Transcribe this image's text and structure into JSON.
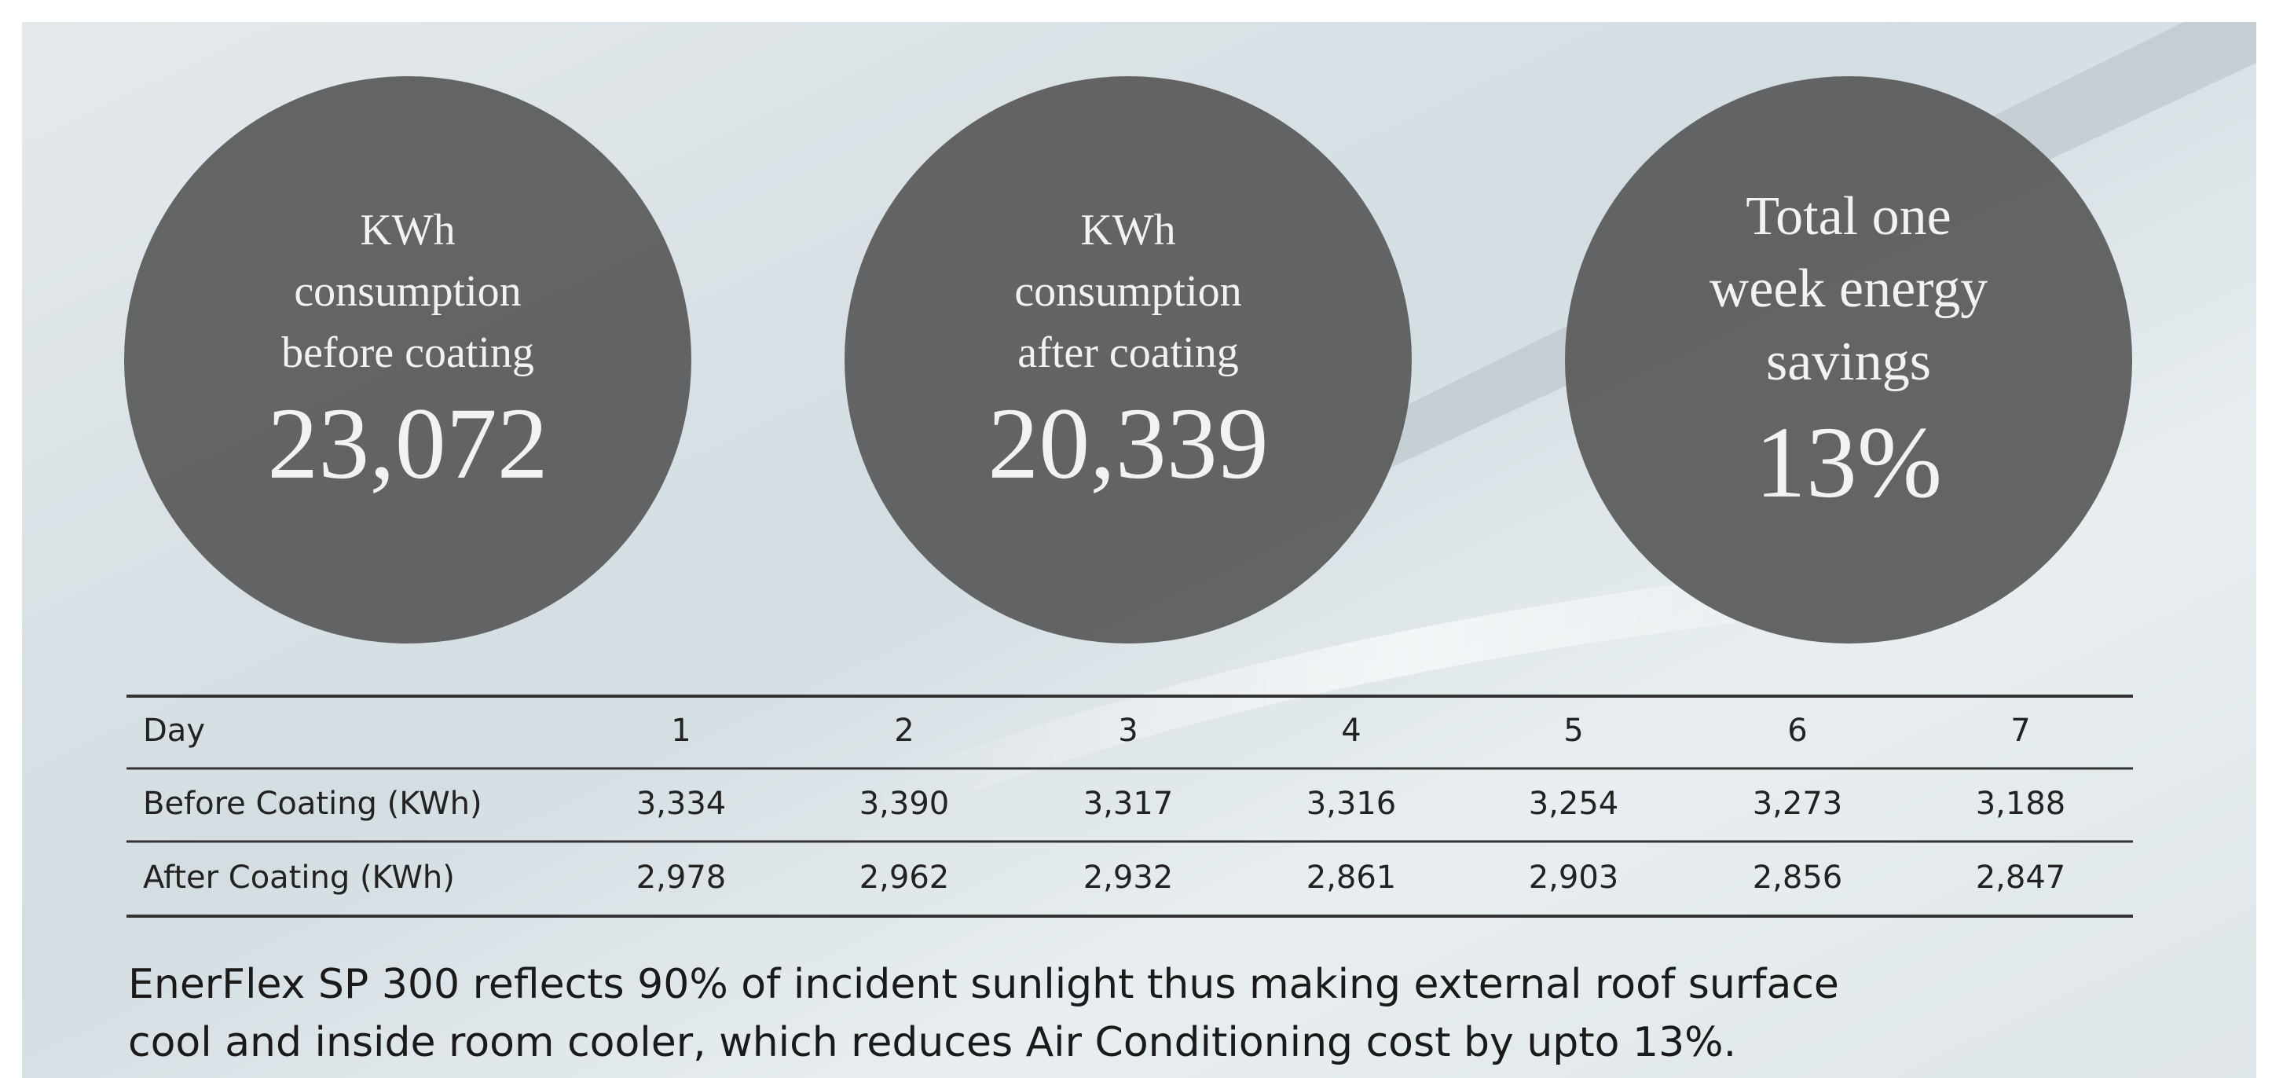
{
  "circles": [
    {
      "label": [
        "KWh",
        "consumption",
        "before coating"
      ],
      "value": "23,072"
    },
    {
      "label": [
        "KWh",
        "consumption",
        "after coating"
      ],
      "value": "20,339"
    },
    {
      "label": [
        "Total one",
        "week energy",
        "savings"
      ],
      "value": "13%"
    }
  ],
  "table": {
    "header": [
      "Day",
      "1",
      "2",
      "3",
      "4",
      "5",
      "6",
      "7"
    ],
    "rows": [
      [
        "Before Coating (KWh)",
        "3,334",
        "3,390",
        "3,317",
        "3,316",
        "3,254",
        "3,273",
        "3,188"
      ],
      [
        "After Coating (KWh)",
        "2,978",
        "2,962",
        "2,932",
        "2,861",
        "2,903",
        "2,856",
        "2,847"
      ]
    ]
  },
  "caption": [
    "EnerFlex SP 300 reflects 90% of incident sunlight thus making external roof surface",
    "cool and inside room cooler, which reduces Air Conditioning cost by upto 13%."
  ]
}
